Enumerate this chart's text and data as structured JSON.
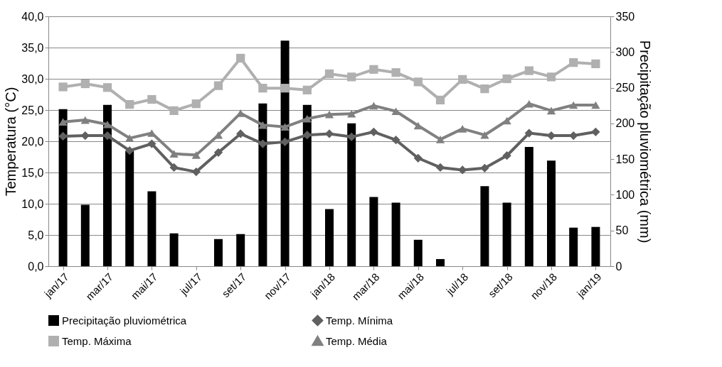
{
  "chart_data": {
    "type": "bar",
    "categories": [
      "jan/17",
      null,
      "mar/17",
      null,
      "mai/17",
      null,
      "jul/17",
      null,
      "set/17",
      null,
      "nov/17",
      null,
      "jan/18",
      null,
      "mar/18",
      null,
      "mai/18",
      null,
      "jul/18",
      null,
      "set/18",
      null,
      "nov/18",
      null,
      "jan/19"
    ],
    "series": [
      {
        "name": "Precipitação pluviométrica",
        "axis": "y2",
        "color": "#000000",
        "marker": "square",
        "values": [
          220,
          86,
          226,
          161,
          105,
          46,
          0,
          38,
          45,
          228,
          316,
          226,
          80,
          200,
          97,
          89,
          37,
          10,
          0,
          112,
          89,
          167,
          148,
          54,
          55
        ]
      },
      {
        "name": "Temp. Mínima",
        "type": "line",
        "color": "#606060",
        "marker": "diamond",
        "values": [
          20.8,
          20.9,
          20.9,
          18.5,
          19.6,
          15.8,
          15.1,
          18.2,
          21.2,
          19.6,
          19.9,
          21.0,
          21.2,
          20.7,
          21.5,
          20.2,
          17.3,
          15.8,
          15.4,
          15.7,
          17.7,
          21.3,
          20.9,
          20.9,
          21.5
        ]
      },
      {
        "name": "Temp. Máxima",
        "type": "line",
        "color": "#b0b0b0",
        "marker": "square",
        "values": [
          28.7,
          29.2,
          28.6,
          25.9,
          26.7,
          24.9,
          26.0,
          28.9,
          33.3,
          28.5,
          28.5,
          28.2,
          30.8,
          30.3,
          31.5,
          31.0,
          29.5,
          26.6,
          29.9,
          28.4,
          30.0,
          31.3,
          30.3,
          32.6,
          32.4
        ]
      },
      {
        "name": "Temp. Média",
        "type": "line",
        "color": "#808080",
        "marker": "triangle",
        "values": [
          23.1,
          23.4,
          22.7,
          20.5,
          21.3,
          18.0,
          17.8,
          21.0,
          24.5,
          22.6,
          22.3,
          23.6,
          24.3,
          24.4,
          25.7,
          24.8,
          22.5,
          20.3,
          22.0,
          21.0,
          23.3,
          26.0,
          24.9,
          25.8,
          25.8
        ]
      }
    ],
    "ylabel": "Temperatura (°C)",
    "y2label": "Precipitação pluviométrica (mm)",
    "ylim": [
      0,
      40
    ],
    "yticks": [
      {
        "value": 0,
        "label": "0,0"
      },
      {
        "value": 5,
        "label": "5,0"
      },
      {
        "value": 10,
        "label": "10,0"
      },
      {
        "value": 15,
        "label": "15,0"
      },
      {
        "value": 20,
        "label": "20,0"
      },
      {
        "value": 25,
        "label": "25,0"
      },
      {
        "value": 30,
        "label": "30,0"
      },
      {
        "value": 35,
        "label": "35,0"
      },
      {
        "value": 40,
        "label": "40,0"
      }
    ],
    "y2lim": [
      0,
      350
    ],
    "y2ticks": [
      0,
      50,
      100,
      150,
      200,
      250,
      300,
      350
    ],
    "grid": "y",
    "legend": "bottom"
  }
}
